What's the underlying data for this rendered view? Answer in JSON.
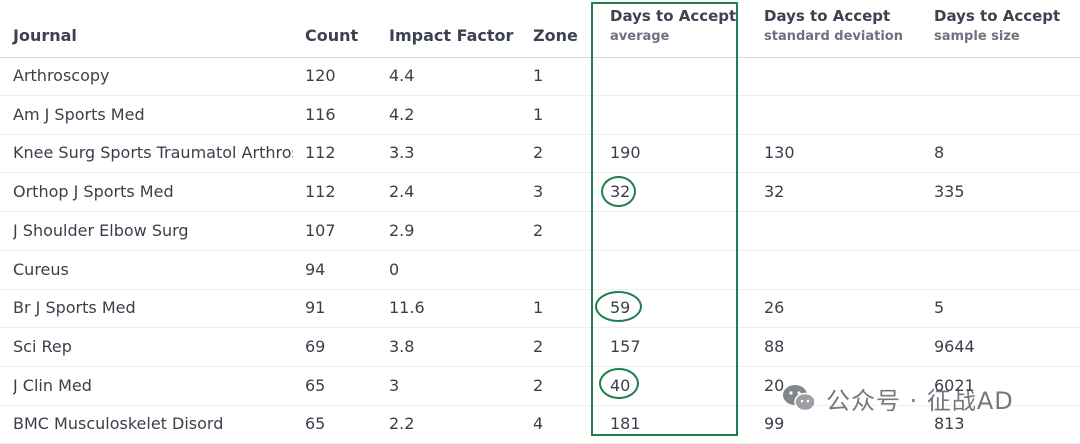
{
  "headers": {
    "journal": "Journal",
    "count": "Count",
    "impact_factor": "Impact Factor",
    "zone": "Zone",
    "avg": {
      "line1": "Days to Accept",
      "line2": "average"
    },
    "sd": {
      "line1": "Days to Accept",
      "line2": "standard deviation"
    },
    "ss": {
      "line1": "Days to Accept",
      "line2": "sample size"
    }
  },
  "rows": [
    {
      "journal": "Arthroscopy",
      "count": "120",
      "impact_factor": "4.4",
      "zone": "1",
      "avg": "",
      "sd": "",
      "ss": ""
    },
    {
      "journal": "Am J Sports Med",
      "count": "116",
      "impact_factor": "4.2",
      "zone": "1",
      "avg": "",
      "sd": "",
      "ss": ""
    },
    {
      "journal": "Knee Surg Sports Traumatol Arthrosc",
      "count": "112",
      "impact_factor": "3.3",
      "zone": "2",
      "avg": "190",
      "sd": "130",
      "ss": "8"
    },
    {
      "journal": "Orthop J Sports Med",
      "count": "112",
      "impact_factor": "2.4",
      "zone": "3",
      "avg": "32",
      "sd": "32",
      "ss": "335"
    },
    {
      "journal": "J Shoulder Elbow Surg",
      "count": "107",
      "impact_factor": "2.9",
      "zone": "2",
      "avg": "",
      "sd": "",
      "ss": ""
    },
    {
      "journal": "Cureus",
      "count": "94",
      "impact_factor": "0",
      "zone": "",
      "avg": "",
      "sd": "",
      "ss": ""
    },
    {
      "journal": "Br J Sports Med",
      "count": "91",
      "impact_factor": "11.6",
      "zone": "1",
      "avg": "59",
      "sd": "26",
      "ss": "5"
    },
    {
      "journal": "Sci Rep",
      "count": "69",
      "impact_factor": "3.8",
      "zone": "2",
      "avg": "157",
      "sd": "88",
      "ss": "9644"
    },
    {
      "journal": "J Clin Med",
      "count": "65",
      "impact_factor": "3",
      "zone": "2",
      "avg": "40",
      "sd": "20",
      "ss": "6021"
    },
    {
      "journal": "BMC Musculoskelet Disord",
      "count": "65",
      "impact_factor": "2.2",
      "zone": "4",
      "avg": "181",
      "sd": "99",
      "ss": "813"
    }
  ],
  "watermark": {
    "text": "公众号 · 征战AD",
    "icon": "wechat-icon"
  },
  "colors": {
    "highlight": "#1f7f4f"
  }
}
